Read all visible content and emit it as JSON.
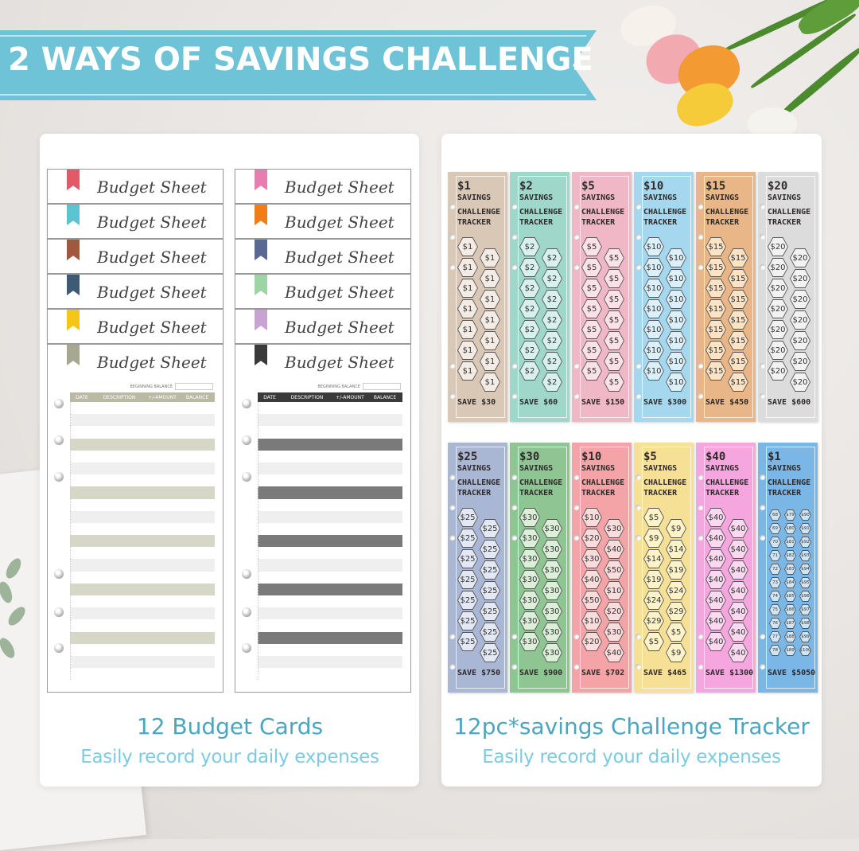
{
  "banner": {
    "title": "2 WAYS OF SAVINGS CHALLENGE",
    "color": "#6ec3d6"
  },
  "budget": {
    "sheet_title": "Budget Sheet",
    "beginning_balance": "BEGINNING BALANCE",
    "columns": [
      "DATE",
      "DESCRIPTION",
      "+/-AMOUNT",
      "BALANCE"
    ],
    "left_ribbons": [
      "#e05a6a",
      "#5cc3d0",
      "#a0583f",
      "#3f5a74",
      "#f5c518",
      "#a7a890"
    ],
    "right_ribbons": [
      "#e67fb0",
      "#ef7d1a",
      "#5a6894",
      "#9fd5a6",
      "#c8a2d0",
      "#3a3a3a"
    ],
    "left_stripe": "#d6d7c6",
    "right_stripe": "#7a7a7a",
    "caption": "12 Budget Cards",
    "subcaption": "Easily record your daily expenses"
  },
  "trackers": {
    "title_line2": "CHALLENGE TRACKER",
    "savings_word": "SAVINGS",
    "caption": "12pc*savings Challenge Tracker",
    "subcaption": "Easily record your daily expenses",
    "rows": [
      [
        {
          "amount": "$1",
          "save": "SAVE $30",
          "color": "#dac8b7",
          "hex_color": "#f4ece4",
          "values": [
            "$1"
          ]
        },
        {
          "amount": "$2",
          "save": "SAVE $60",
          "color": "#9fd8cb",
          "hex_color": "#d8f1ec",
          "values": [
            "$2"
          ]
        },
        {
          "amount": "$5",
          "save": "SAVE $150",
          "color": "#f0b7c6",
          "hex_color": "#fbe2e9",
          "values": [
            "$5"
          ]
        },
        {
          "amount": "$10",
          "save": "SAVE $300",
          "color": "#a5d8ee",
          "hex_color": "#dcf0fa",
          "values": [
            "$10"
          ]
        },
        {
          "amount": "$15",
          "save": "SAVE $450",
          "color": "#e9b787",
          "hex_color": "#fbe3c6",
          "values": [
            "$15"
          ]
        },
        {
          "amount": "$20",
          "save": "SAVE $600",
          "color": "#dcdcdc",
          "hex_color": "#f2f2f2",
          "values": [
            "$20"
          ]
        }
      ],
      [
        {
          "amount": "$25",
          "save": "SAVE $750",
          "color": "#a9b6d4",
          "hex_color": "#e3e8f4",
          "values": [
            "$25"
          ]
        },
        {
          "amount": "$30",
          "save": "SAVE $900",
          "color": "#8fc493",
          "hex_color": "#dcefd8",
          "values": [
            "$30"
          ]
        },
        {
          "amount": "$10",
          "save": "SAVE $702",
          "color": "#f4a4a6",
          "hex_color": "#fbdcdc",
          "values": [
            "$10",
            "$20",
            "$30",
            "$40",
            "$50"
          ]
        },
        {
          "amount": "$5",
          "save": "SAVE $465",
          "color": "#f6e095",
          "hex_color": "#fdf3c8",
          "values": [
            "$5",
            "$9",
            "$14",
            "$19",
            "$24",
            "$29"
          ]
        },
        {
          "amount": "$40",
          "save": "SAVE $1300",
          "color": "#f5a6df",
          "hex_color": "#fbd9f1",
          "values": [
            "$40"
          ]
        },
        {
          "amount": "$1",
          "save": "SAVE $5050",
          "color": "#7ab6e6",
          "hex_color": "#cfe6f7",
          "values": [
            "68",
            "69",
            "70",
            "71",
            "72",
            "73",
            "74",
            "75",
            "76",
            "77",
            "78",
            "$79",
            "$80",
            "$81",
            "$82",
            "$83",
            "$84",
            "$85",
            "$86",
            "$87",
            "$88",
            "$89",
            "$90",
            "$91",
            "$92",
            "$93",
            "$94",
            "$95",
            "$96",
            "$97",
            "$98",
            "$99",
            "$100"
          ]
        }
      ]
    ]
  }
}
